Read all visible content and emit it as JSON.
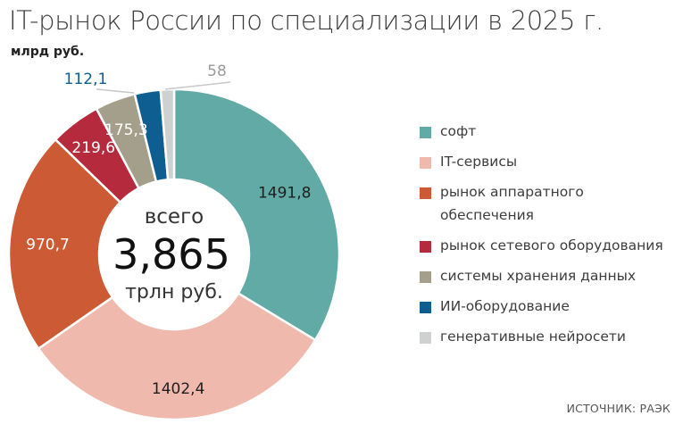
{
  "title": "IT-рынок России по специализации в 2025 г.",
  "units": "млрд руб.",
  "center": {
    "top": "всего",
    "value": "3,865",
    "bottom": "трлн руб."
  },
  "source": "ИСТОЧНИК: РАЭК",
  "chart_data": {
    "type": "pie",
    "title": "IT-рынок России по специализации в 2025 г.",
    "unit": "млрд руб.",
    "total_label": "3,865 трлн руб.",
    "legend_position": "right",
    "slices": [
      {
        "name": "софт",
        "value": 1491.8,
        "label": "1491,8",
        "color": "#62aaa5"
      },
      {
        "name": "IT-сервисы",
        "value": 1402.4,
        "label": "1402,4",
        "color": "#f0b9ae"
      },
      {
        "name": "рынок аппаратного обеспечения",
        "value": 970.7,
        "label": "970,7",
        "color": "#cc5a35"
      },
      {
        "name": "рынок сетевого оборудования",
        "value": 219.6,
        "label": "219,6",
        "color": "#b52a3c"
      },
      {
        "name": "системы хранения данных",
        "value": 175.3,
        "label": "175,3",
        "color": "#a49f8a"
      },
      {
        "name": "ИИ-оборудование",
        "value": 112.1,
        "label": "112,1",
        "color": "#0f5e92"
      },
      {
        "name": "генеративные нейросети",
        "value": 58,
        "label": "58",
        "color": "#cfd0d0"
      }
    ]
  }
}
